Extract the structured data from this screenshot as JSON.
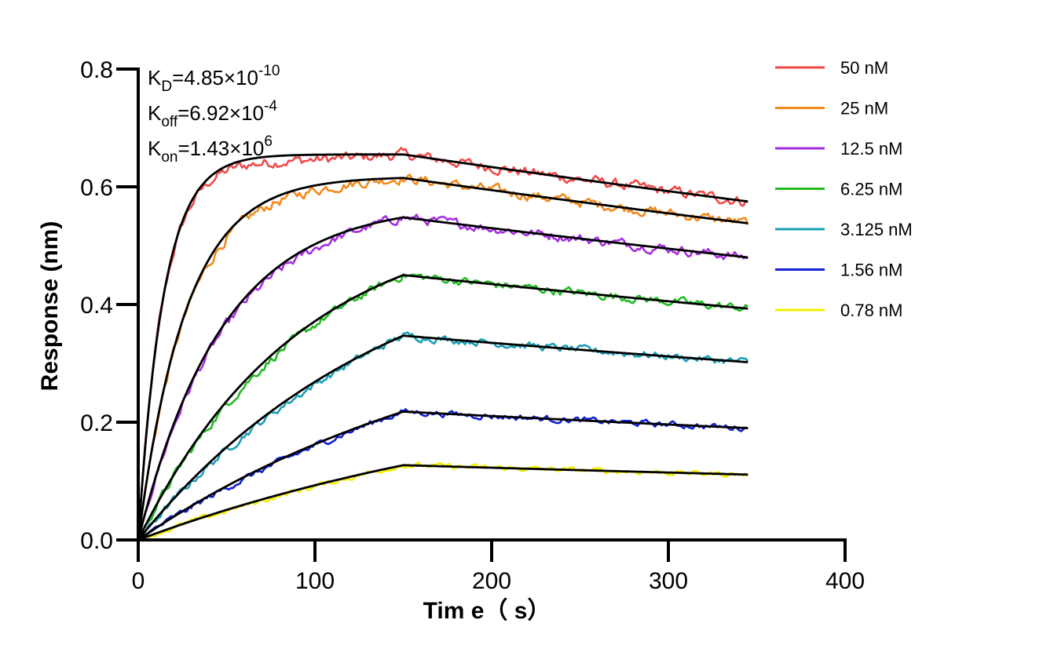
{
  "chart_data": {
    "type": "line",
    "xlabel": "Tim e（ s）",
    "ylabel": "Response (nm)",
    "xlim": [
      0,
      400
    ],
    "ylim": [
      0,
      0.8
    ],
    "x_ticks": [
      "0",
      "100",
      "200",
      "300",
      "400"
    ],
    "y_ticks": [
      "0.0",
      "0.2",
      "0.4",
      "0.6",
      "0.8"
    ],
    "x_tick_values": [
      0,
      100,
      200,
      300,
      400
    ],
    "y_tick_values": [
      0,
      0.2,
      0.4,
      0.6,
      0.8
    ],
    "grid": false,
    "legend_position": "top-right",
    "association_end": 150,
    "time_end": 345,
    "annotations": [
      {
        "main": "K",
        "sub": "D",
        "rest": "=4.85×10",
        "sup": "-10"
      },
      {
        "main": "K",
        "sub": "off",
        "rest": "=6.92×10",
        "sup": "-4"
      },
      {
        "main": "K",
        "sub": "on",
        "rest": "=1.43×10",
        "sup": "6"
      }
    ],
    "fit_color": "#000000",
    "series": [
      {
        "name": "50 nM",
        "color": "#f04a4a",
        "peak": 0.655,
        "end": 0.575,
        "k_assoc": 0.07
      },
      {
        "name": "25 nM",
        "color": "#f28a1a",
        "peak": 0.615,
        "end": 0.538,
        "k_assoc": 0.037
      },
      {
        "name": "12.5 nM",
        "color": "#a52ee0",
        "peak": 0.548,
        "end": 0.48,
        "k_assoc": 0.021
      },
      {
        "name": "6.25 nM",
        "color": "#22bb22",
        "peak": 0.45,
        "end": 0.393,
        "k_assoc": 0.011
      },
      {
        "name": "3.125 nM",
        "color": "#1a9fb5",
        "peak": 0.347,
        "end": 0.302,
        "k_assoc": 0.007
      },
      {
        "name": "1.56 nM",
        "color": "#1020d0",
        "peak": 0.218,
        "end": 0.19,
        "k_assoc": 0.005
      },
      {
        "name": "0.78 nM",
        "color": "#f5f000",
        "peak": 0.127,
        "end": 0.111,
        "k_assoc": 0.004
      }
    ]
  }
}
